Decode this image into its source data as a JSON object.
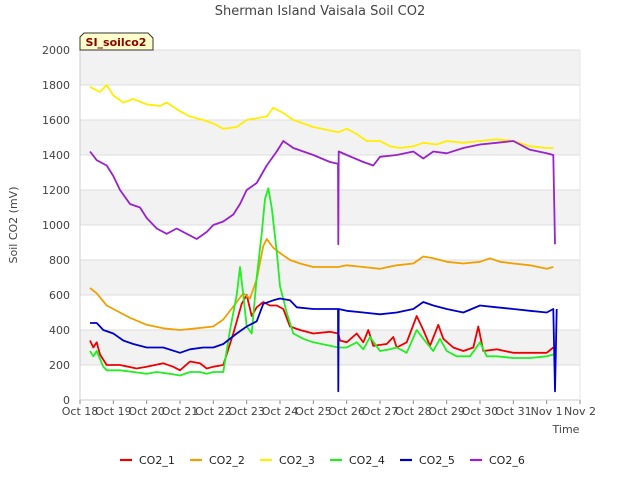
{
  "chart_data": {
    "type": "line",
    "title": "Sherman Island Vaisala Soil CO2",
    "tag": "SI_soilco2",
    "xlabel": "Time",
    "ylabel": "Soil CO2 (mV)",
    "ylim": [
      0,
      2000
    ],
    "yticks": [
      0,
      200,
      400,
      600,
      800,
      1000,
      1200,
      1400,
      1600,
      1800,
      2000
    ],
    "xlim": [
      0,
      15
    ],
    "xticks": [
      {
        "v": 0,
        "label": "Oct 18"
      },
      {
        "v": 1,
        "label": "Oct 19"
      },
      {
        "v": 2,
        "label": "Oct 20"
      },
      {
        "v": 3,
        "label": "Oct 21"
      },
      {
        "v": 4,
        "label": "Oct 22"
      },
      {
        "v": 5,
        "label": "Oct 23"
      },
      {
        "v": 6,
        "label": "Oct 24"
      },
      {
        "v": 7,
        "label": "Oct 25"
      },
      {
        "v": 8,
        "label": "Oct 26"
      },
      {
        "v": 9,
        "label": "Oct 27"
      },
      {
        "v": 10,
        "label": "Oct 28"
      },
      {
        "v": 11,
        "label": "Oct 29"
      },
      {
        "v": 12,
        "label": "Oct 30"
      },
      {
        "v": 13,
        "label": "Oct 31"
      },
      {
        "v": 14,
        "label": "Nov 1"
      },
      {
        "v": 15,
        "label": "Nov 2"
      }
    ],
    "grid": true,
    "legend_position": "bottom",
    "series": [
      {
        "name": "CO2_1",
        "color": "#ee0000",
        "points": [
          [
            0.3,
            340
          ],
          [
            0.4,
            300
          ],
          [
            0.5,
            330
          ],
          [
            0.6,
            260
          ],
          [
            0.8,
            200
          ],
          [
            1.2,
            200
          ],
          [
            1.7,
            180
          ],
          [
            2.0,
            190
          ],
          [
            2.5,
            210
          ],
          [
            2.8,
            190
          ],
          [
            3.0,
            170
          ],
          [
            3.3,
            220
          ],
          [
            3.6,
            210
          ],
          [
            3.8,
            180
          ],
          [
            4.0,
            190
          ],
          [
            4.3,
            200
          ],
          [
            4.6,
            380
          ],
          [
            4.85,
            550
          ],
          [
            5.0,
            600
          ],
          [
            5.15,
            480
          ],
          [
            5.3,
            530
          ],
          [
            5.5,
            560
          ],
          [
            5.7,
            540
          ],
          [
            5.9,
            540
          ],
          [
            6.1,
            520
          ],
          [
            6.3,
            420
          ],
          [
            6.6,
            400
          ],
          [
            7.0,
            380
          ],
          [
            7.5,
            390
          ],
          [
            7.75,
            380
          ],
          [
            7.8,
            340
          ],
          [
            8.0,
            330
          ],
          [
            8.3,
            380
          ],
          [
            8.5,
            330
          ],
          [
            8.65,
            400
          ],
          [
            8.8,
            310
          ],
          [
            9.2,
            320
          ],
          [
            9.4,
            360
          ],
          [
            9.5,
            300
          ],
          [
            9.8,
            330
          ],
          [
            10.1,
            480
          ],
          [
            10.3,
            400
          ],
          [
            10.5,
            310
          ],
          [
            10.75,
            430
          ],
          [
            10.9,
            350
          ],
          [
            11.2,
            300
          ],
          [
            11.5,
            280
          ],
          [
            11.8,
            300
          ],
          [
            11.95,
            420
          ],
          [
            12.1,
            280
          ],
          [
            12.5,
            290
          ],
          [
            13.0,
            270
          ],
          [
            13.5,
            270
          ],
          [
            14.0,
            270
          ],
          [
            14.2,
            300
          ]
        ]
      },
      {
        "name": "CO2_2",
        "color": "#f0a000",
        "points": [
          [
            0.3,
            640
          ],
          [
            0.5,
            610
          ],
          [
            0.8,
            540
          ],
          [
            1.0,
            520
          ],
          [
            1.5,
            470
          ],
          [
            2.0,
            430
          ],
          [
            2.5,
            410
          ],
          [
            3.0,
            400
          ],
          [
            3.5,
            410
          ],
          [
            4.0,
            420
          ],
          [
            4.3,
            460
          ],
          [
            4.7,
            560
          ],
          [
            4.9,
            610
          ],
          [
            5.1,
            580
          ],
          [
            5.3,
            690
          ],
          [
            5.5,
            880
          ],
          [
            5.6,
            920
          ],
          [
            5.8,
            870
          ],
          [
            6.0,
            840
          ],
          [
            6.3,
            800
          ],
          [
            6.6,
            780
          ],
          [
            7.0,
            760
          ],
          [
            7.5,
            760
          ],
          [
            7.75,
            760
          ],
          [
            8.0,
            770
          ],
          [
            8.5,
            760
          ],
          [
            9.0,
            750
          ],
          [
            9.5,
            770
          ],
          [
            10.0,
            780
          ],
          [
            10.3,
            820
          ],
          [
            10.6,
            810
          ],
          [
            11.0,
            790
          ],
          [
            11.5,
            780
          ],
          [
            12.0,
            790
          ],
          [
            12.3,
            810
          ],
          [
            12.6,
            790
          ],
          [
            13.0,
            780
          ],
          [
            13.5,
            770
          ],
          [
            14.0,
            750
          ],
          [
            14.2,
            760
          ]
        ]
      },
      {
        "name": "CO2_3",
        "color": "#ffee00",
        "points": [
          [
            0.3,
            1790
          ],
          [
            0.6,
            1760
          ],
          [
            0.8,
            1800
          ],
          [
            1.0,
            1740
          ],
          [
            1.3,
            1700
          ],
          [
            1.6,
            1720
          ],
          [
            2.0,
            1690
          ],
          [
            2.4,
            1680
          ],
          [
            2.6,
            1700
          ],
          [
            3.0,
            1650
          ],
          [
            3.3,
            1620
          ],
          [
            3.7,
            1600
          ],
          [
            4.0,
            1580
          ],
          [
            4.3,
            1550
          ],
          [
            4.7,
            1560
          ],
          [
            5.0,
            1600
          ],
          [
            5.3,
            1610
          ],
          [
            5.6,
            1620
          ],
          [
            5.8,
            1670
          ],
          [
            6.1,
            1640
          ],
          [
            6.4,
            1600
          ],
          [
            6.7,
            1580
          ],
          [
            7.0,
            1560
          ],
          [
            7.5,
            1540
          ],
          [
            7.75,
            1530
          ],
          [
            8.0,
            1550
          ],
          [
            8.3,
            1520
          ],
          [
            8.6,
            1480
          ],
          [
            9.0,
            1480
          ],
          [
            9.3,
            1450
          ],
          [
            9.6,
            1440
          ],
          [
            10.0,
            1450
          ],
          [
            10.3,
            1470
          ],
          [
            10.7,
            1460
          ],
          [
            11.0,
            1480
          ],
          [
            11.5,
            1470
          ],
          [
            12.0,
            1480
          ],
          [
            12.5,
            1490
          ],
          [
            13.0,
            1480
          ],
          [
            13.5,
            1450
          ],
          [
            14.0,
            1440
          ],
          [
            14.2,
            1440
          ]
        ]
      },
      {
        "name": "CO2_4",
        "color": "#22ee22",
        "points": [
          [
            0.3,
            280
          ],
          [
            0.4,
            250
          ],
          [
            0.5,
            280
          ],
          [
            0.7,
            190
          ],
          [
            0.8,
            170
          ],
          [
            1.2,
            170
          ],
          [
            1.6,
            160
          ],
          [
            2.0,
            150
          ],
          [
            2.3,
            160
          ],
          [
            2.7,
            150
          ],
          [
            3.0,
            140
          ],
          [
            3.3,
            160
          ],
          [
            3.6,
            160
          ],
          [
            3.8,
            150
          ],
          [
            4.0,
            160
          ],
          [
            4.3,
            160
          ],
          [
            4.5,
            400
          ],
          [
            4.7,
            600
          ],
          [
            4.8,
            760
          ],
          [
            4.9,
            600
          ],
          [
            5.0,
            420
          ],
          [
            5.15,
            380
          ],
          [
            5.3,
            700
          ],
          [
            5.45,
            950
          ],
          [
            5.55,
            1150
          ],
          [
            5.65,
            1210
          ],
          [
            5.75,
            1100
          ],
          [
            5.9,
            850
          ],
          [
            6.0,
            650
          ],
          [
            6.2,
            500
          ],
          [
            6.4,
            380
          ],
          [
            6.7,
            350
          ],
          [
            7.0,
            330
          ],
          [
            7.5,
            310
          ],
          [
            7.75,
            300
          ],
          [
            8.0,
            300
          ],
          [
            8.3,
            330
          ],
          [
            8.5,
            290
          ],
          [
            8.7,
            360
          ],
          [
            9.0,
            280
          ],
          [
            9.3,
            290
          ],
          [
            9.5,
            300
          ],
          [
            9.8,
            270
          ],
          [
            10.1,
            400
          ],
          [
            10.3,
            350
          ],
          [
            10.6,
            280
          ],
          [
            10.8,
            350
          ],
          [
            11.0,
            280
          ],
          [
            11.3,
            250
          ],
          [
            11.7,
            250
          ],
          [
            12.0,
            330
          ],
          [
            12.2,
            250
          ],
          [
            12.5,
            250
          ],
          [
            13.0,
            240
          ],
          [
            13.5,
            240
          ],
          [
            14.0,
            250
          ],
          [
            14.2,
            260
          ]
        ]
      },
      {
        "name": "CO2_5",
        "color": "#0000cc",
        "points": [
          [
            0.3,
            440
          ],
          [
            0.5,
            440
          ],
          [
            0.7,
            400
          ],
          [
            1.0,
            380
          ],
          [
            1.3,
            340
          ],
          [
            1.6,
            320
          ],
          [
            2.0,
            300
          ],
          [
            2.5,
            300
          ],
          [
            3.0,
            270
          ],
          [
            3.3,
            290
          ],
          [
            3.7,
            300
          ],
          [
            4.0,
            300
          ],
          [
            4.3,
            320
          ],
          [
            4.7,
            380
          ],
          [
            5.0,
            420
          ],
          [
            5.3,
            450
          ],
          [
            5.5,
            550
          ],
          [
            5.8,
            570
          ],
          [
            6.0,
            580
          ],
          [
            6.3,
            570
          ],
          [
            6.5,
            530
          ],
          [
            7.0,
            520
          ],
          [
            7.5,
            520
          ],
          [
            7.74,
            520
          ],
          [
            7.75,
            50
          ],
          [
            7.76,
            520
          ],
          [
            8.0,
            510
          ],
          [
            8.5,
            500
          ],
          [
            9.0,
            490
          ],
          [
            9.5,
            500
          ],
          [
            10.0,
            520
          ],
          [
            10.3,
            560
          ],
          [
            10.6,
            540
          ],
          [
            11.0,
            520
          ],
          [
            11.5,
            500
          ],
          [
            12.0,
            540
          ],
          [
            12.5,
            530
          ],
          [
            13.0,
            520
          ],
          [
            13.5,
            510
          ],
          [
            14.0,
            500
          ],
          [
            14.2,
            520
          ],
          [
            14.25,
            50
          ],
          [
            14.3,
            520
          ]
        ]
      },
      {
        "name": "CO2_6",
        "color": "#9922cc",
        "points": [
          [
            0.3,
            1420
          ],
          [
            0.5,
            1370
          ],
          [
            0.8,
            1340
          ],
          [
            1.0,
            1280
          ],
          [
            1.2,
            1200
          ],
          [
            1.5,
            1120
          ],
          [
            1.8,
            1100
          ],
          [
            2.0,
            1040
          ],
          [
            2.3,
            980
          ],
          [
            2.6,
            950
          ],
          [
            2.9,
            980
          ],
          [
            3.2,
            950
          ],
          [
            3.5,
            920
          ],
          [
            3.8,
            960
          ],
          [
            4.0,
            1000
          ],
          [
            4.3,
            1020
          ],
          [
            4.6,
            1060
          ],
          [
            4.8,
            1120
          ],
          [
            5.0,
            1200
          ],
          [
            5.3,
            1240
          ],
          [
            5.6,
            1340
          ],
          [
            5.9,
            1420
          ],
          [
            6.1,
            1480
          ],
          [
            6.4,
            1440
          ],
          [
            6.7,
            1420
          ],
          [
            7.0,
            1400
          ],
          [
            7.5,
            1360
          ],
          [
            7.74,
            1350
          ],
          [
            7.75,
            890
          ],
          [
            7.76,
            1420
          ],
          [
            8.0,
            1400
          ],
          [
            8.5,
            1360
          ],
          [
            8.8,
            1340
          ],
          [
            9.0,
            1390
          ],
          [
            9.5,
            1400
          ],
          [
            10.0,
            1420
          ],
          [
            10.3,
            1380
          ],
          [
            10.6,
            1420
          ],
          [
            11.0,
            1410
          ],
          [
            11.5,
            1440
          ],
          [
            12.0,
            1460
          ],
          [
            12.5,
            1470
          ],
          [
            13.0,
            1480
          ],
          [
            13.5,
            1430
          ],
          [
            14.0,
            1410
          ],
          [
            14.2,
            1400
          ],
          [
            14.25,
            890
          ]
        ]
      }
    ]
  }
}
